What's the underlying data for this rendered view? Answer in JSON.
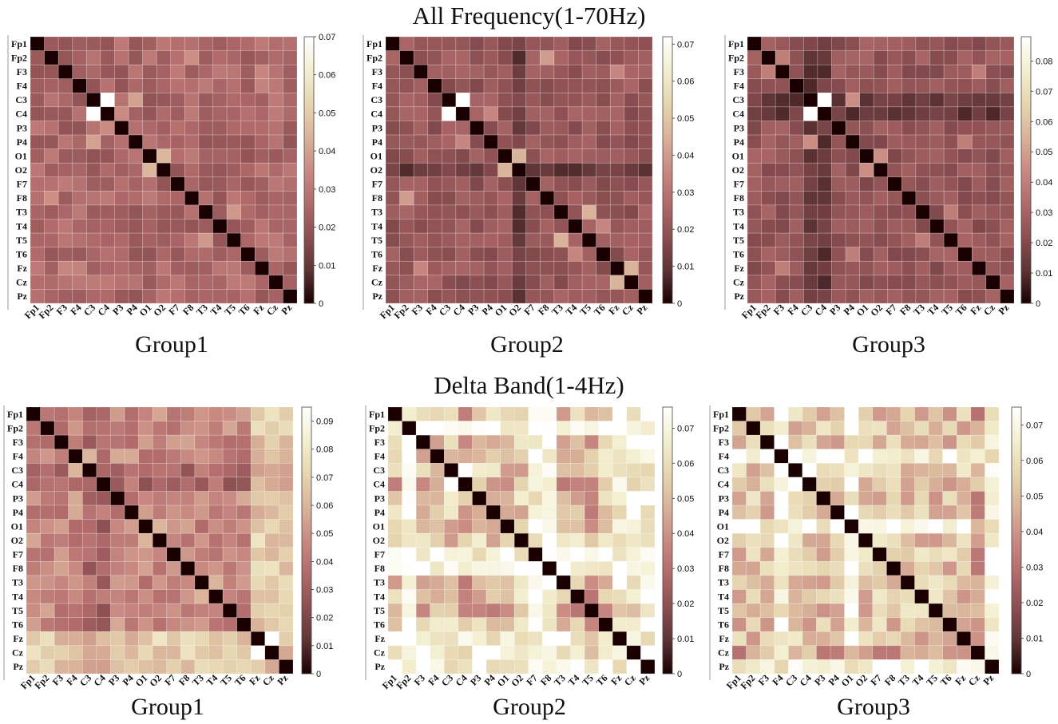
{
  "titles": {
    "top": "All Frequency(1-70Hz)",
    "bottom": "Delta Band(1-4Hz)"
  },
  "channels": [
    "Fp1",
    "Fp2",
    "F3",
    "F4",
    "C3",
    "C4",
    "P3",
    "P4",
    "O1",
    "O2",
    "F7",
    "F8",
    "T3",
    "T4",
    "T5",
    "T6",
    "Fz",
    "Cz",
    "Pz"
  ],
  "colormap": {
    "name": "pink",
    "stops": [
      "#1a0000",
      "#5e3436",
      "#8c4f52",
      "#b06a6a",
      "#c98a82",
      "#d9b39a",
      "#e6d6b0",
      "#f3efd0",
      "#ffffff"
    ]
  },
  "chart_data": [
    {
      "type": "heatmap",
      "band": "All Frequency(1-70Hz)",
      "group": "Group1",
      "vmin": 0,
      "vmax": 0.07,
      "colorbar_ticks": [
        "0",
        "0.01",
        "0.02",
        "0.03",
        "0.04",
        "0.05",
        "0.06",
        "0.07"
      ],
      "base": 0.024,
      "bright_channels": [],
      "dark_channels": [],
      "highlights": [
        [
          "C3",
          "C4",
          0.07
        ],
        [
          "C3",
          "C4-row",
          0
        ],
        [
          "P4",
          "C3",
          0.04
        ],
        [
          "O1",
          "O2",
          0.045
        ],
        [
          "T3",
          "T5",
          0.038
        ],
        [
          "F8",
          "Fp2",
          0.036
        ],
        [
          "Fz",
          "F3",
          0.034
        ],
        [
          "Fz",
          "F4",
          0.033
        ],
        [
          "P3",
          "C4",
          0.035
        ]
      ]
    },
    {
      "type": "heatmap",
      "band": "All Frequency(1-70Hz)",
      "group": "Group2",
      "vmin": 0,
      "vmax": 0.072,
      "colorbar_ticks": [
        "0",
        "0.01",
        "0.02",
        "0.03",
        "0.04",
        "0.05",
        "0.06",
        "0.07"
      ],
      "base": 0.02,
      "bright_channels": [],
      "dark_channels": [
        "O2"
      ],
      "highlights": [
        [
          "C3",
          "C4",
          0.072
        ],
        [
          "O1",
          "O2",
          0.045
        ],
        [
          "T3",
          "T5",
          0.045
        ],
        [
          "F8",
          "Fp2",
          0.04
        ],
        [
          "Fz",
          "Cz",
          0.045
        ],
        [
          "T4",
          "T6",
          0.035
        ],
        [
          "P4",
          "C4",
          0.035
        ],
        [
          "F3",
          "Fz",
          0.035
        ]
      ]
    },
    {
      "type": "heatmap",
      "band": "All Frequency(1-70Hz)",
      "group": "Group3",
      "vmin": 0,
      "vmax": 0.088,
      "colorbar_ticks": [
        "0",
        "0.01",
        "0.02",
        "0.03",
        "0.04",
        "0.05",
        "0.06",
        "0.07",
        "0.08"
      ],
      "base": 0.024,
      "bright_channels": [],
      "dark_channels": [
        "C3",
        "C4"
      ],
      "highlights": [
        [
          "C3",
          "C4",
          0.088
        ],
        [
          "O1",
          "O2",
          0.045
        ],
        [
          "P4",
          "C3",
          0.045
        ],
        [
          "F3",
          "Fp2",
          0.04
        ],
        [
          "T3",
          "T5",
          0.04
        ],
        [
          "T6",
          "P4",
          0.04
        ],
        [
          "Fz",
          "F3",
          0.04
        ]
      ]
    },
    {
      "type": "heatmap",
      "band": "Delta Band(1-4Hz)",
      "group": "Group1",
      "vmin": 0,
      "vmax": 0.095,
      "colorbar_ticks": [
        "0",
        "0.01",
        "0.02",
        "0.03",
        "0.04",
        "0.05",
        "0.06",
        "0.07",
        "0.08",
        "0.09"
      ],
      "base": 0.045,
      "bright_channels": [
        "Fz",
        "Cz",
        "Pz"
      ],
      "dark_channels": [
        "C3",
        "C4"
      ],
      "highlights": [
        [
          "Fz",
          "Cz",
          0.095
        ],
        [
          "F4",
          "C3",
          0.06
        ],
        [
          "O1",
          "O2",
          0.06
        ],
        [
          "T3",
          "T4",
          0.06
        ]
      ]
    },
    {
      "type": "heatmap",
      "band": "Delta Band(1-4Hz)",
      "group": "Group2",
      "vmin": 0,
      "vmax": 0.076,
      "colorbar_ticks": [
        "0",
        "0.01",
        "0.02",
        "0.03",
        "0.04",
        "0.05",
        "0.06",
        "0.07"
      ],
      "base": 0.052,
      "bright_channels": [
        "F7",
        "F8",
        "Fz",
        "Cz",
        "Pz",
        "Fp2"
      ],
      "dark_channels": [
        "C4",
        "T5"
      ],
      "highlights": [
        [
          "C3",
          "C4",
          0.076
        ],
        [
          "F7",
          "Fp1",
          0.074
        ],
        [
          "F8",
          "Fp1",
          0.074
        ],
        [
          "Fz",
          "Cz",
          0.07
        ]
      ]
    },
    {
      "type": "heatmap",
      "band": "Delta Band(1-4Hz)",
      "group": "Group3",
      "vmin": 0,
      "vmax": 0.075,
      "colorbar_ticks": [
        "0",
        "0.01",
        "0.02",
        "0.03",
        "0.04",
        "0.05",
        "0.06",
        "0.07"
      ],
      "base": 0.05,
      "bright_channels": [
        "Pz",
        "F4",
        "O1"
      ],
      "dark_channels": [
        "Cz"
      ],
      "highlights": [
        [
          "C3",
          "C4",
          0.075
        ],
        [
          "O1",
          "O2",
          0.07
        ],
        [
          "F4",
          "Fp2",
          0.065
        ],
        [
          "P4",
          "Pz",
          0.07
        ]
      ]
    }
  ]
}
